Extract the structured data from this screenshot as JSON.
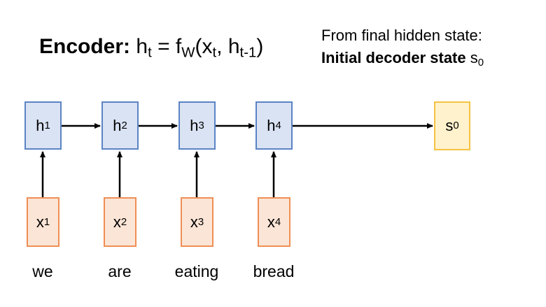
{
  "title": {
    "label": "Encoder:",
    "formula_h": "h",
    "formula_h_sub": "t",
    "formula_eq": " = f",
    "formula_f_sub": "W",
    "formula_args_open": "(x",
    "formula_x_sub": "t",
    "formula_args_mid": ", h",
    "formula_h2_sub": "t-1",
    "formula_close": ")"
  },
  "note": {
    "line1": "From final hidden state:",
    "line2_bold": "Initial decoder state",
    "line2_var": " s",
    "line2_sub": "0"
  },
  "hidden_states": [
    {
      "base": "h",
      "sub": "1"
    },
    {
      "base": "h",
      "sub": "2"
    },
    {
      "base": "h",
      "sub": "3"
    },
    {
      "base": "h",
      "sub": "4"
    }
  ],
  "inputs": [
    {
      "base": "x",
      "sub": "1"
    },
    {
      "base": "x",
      "sub": "2"
    },
    {
      "base": "x",
      "sub": "3"
    },
    {
      "base": "x",
      "sub": "4"
    }
  ],
  "decoder_state": {
    "base": "s",
    "sub": "0"
  },
  "words": [
    "we",
    "are",
    "eating",
    "bread"
  ]
}
